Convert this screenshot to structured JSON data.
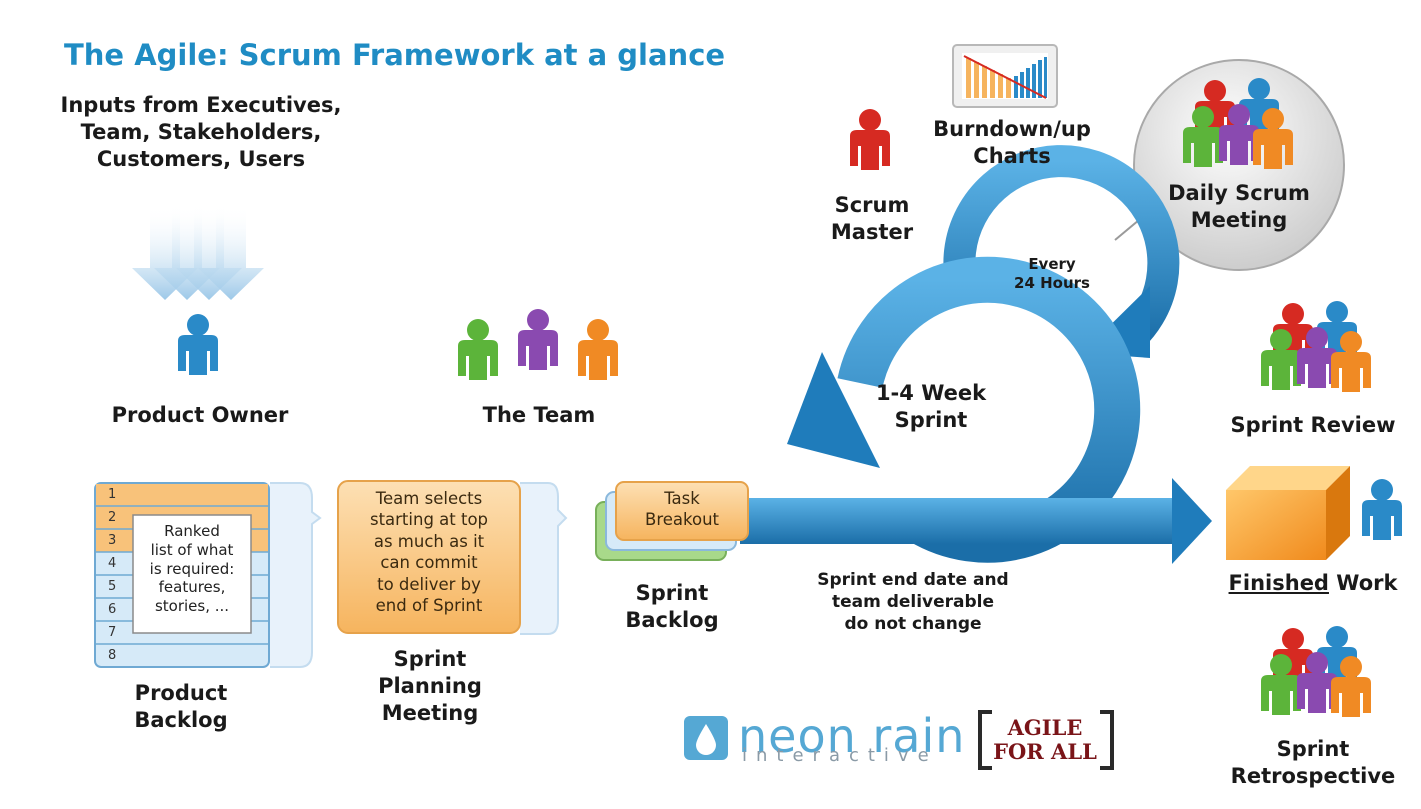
{
  "title": "The Agile: Scrum Framework at a glance",
  "inputs_label": "Inputs from Executives,\nTeam, Stakeholders,\nCustomers, Users",
  "product_owner_label": "Product Owner",
  "the_team_label": "The Team",
  "scrum_master_label": "Scrum\nMaster",
  "burndown_label": "Burndown/up\nCharts",
  "daily_scrum_label": "Daily Scrum\nMeeting",
  "every_24_label": "Every\n24 Hours",
  "sprint_loop_label": "1-4 Week\nSprint",
  "sprint_review_label": "Sprint Review",
  "finished_work": {
    "underlined": "Finished",
    "rest": " Work"
  },
  "sprint_retro_label": "Sprint\nRetrospective",
  "product_backlog": {
    "label": "Product\nBacklog",
    "rows": [
      "1",
      "2",
      "3",
      "4",
      "5",
      "6",
      "7",
      "8"
    ],
    "note": "Ranked\nlist of what\nis required:\nfeatures,\nstories, ..."
  },
  "sprint_planning": {
    "box_text": "Team selects\nstarting at top\nas much as it\ncan commit\nto deliver by\nend of Sprint",
    "label": "Sprint\nPlanning\nMeeting"
  },
  "sprint_backlog": {
    "box_text": "Task\nBreakout",
    "label": "Sprint\nBacklog"
  },
  "sprint_note": "Sprint end date and\nteam deliverable\ndo not change",
  "logos": {
    "neon_rain": "neon rain",
    "neon_rain_sub": "interactive",
    "agile_for_all": "AGILE\nFOR ALL"
  },
  "colors": {
    "title": "#1f8cc4",
    "arrow_blue": "#2a86c4",
    "person_blue": "#2a8ac8",
    "person_green": "#5cb43a",
    "person_purple": "#8a4ab0",
    "person_orange": "#f08a24",
    "person_red": "#d62a22",
    "box_orange": "#f8c27a"
  },
  "icons": [
    "down-arrows-icon",
    "person-icon",
    "burndown-chart-icon",
    "team-group-icon",
    "cycle-arrow-icon",
    "finished-box-icon",
    "neon-rain-drop-icon"
  ]
}
